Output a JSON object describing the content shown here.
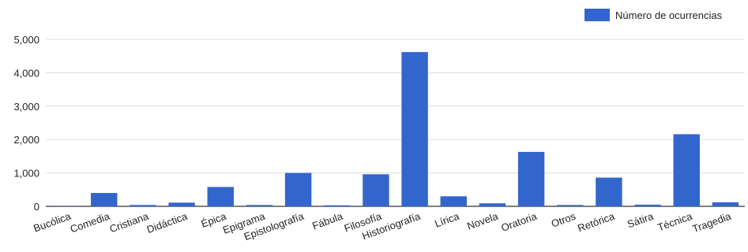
{
  "chart_data": {
    "type": "bar",
    "categories": [
      "Bucólica",
      "Comedia",
      "Cristiana",
      "Didáctica",
      "Épica",
      "Epigrama",
      "Epistolografía",
      "Fábula",
      "Filosofía",
      "Historiografía",
      "Lírica",
      "Novela",
      "Oratoria",
      "Otros",
      "Retórica",
      "Sátira",
      "Técnica",
      "Tragedia"
    ],
    "series": [
      {
        "name": "Número de ocurrencias",
        "color": "#3366cc",
        "values": [
          5,
          400,
          40,
          110,
          580,
          40,
          1000,
          30,
          960,
          4620,
          300,
          90,
          1630,
          40,
          860,
          50,
          2160,
          120
        ]
      }
    ],
    "y_ticks": [
      "0",
      "1,000",
      "2,000",
      "3,000",
      "4,000",
      "5,000"
    ],
    "ylim": [
      0,
      5000
    ],
    "grid": true,
    "legend_position": "top-right",
    "title": "",
    "xlabel": "",
    "ylabel": ""
  }
}
